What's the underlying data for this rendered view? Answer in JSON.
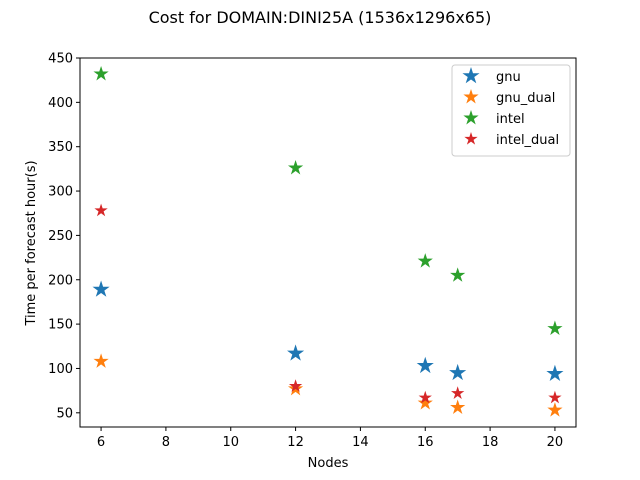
{
  "chart_data": {
    "type": "scatter",
    "title": "Cost for DOMAIN:DINI25A (1536x1296x65)",
    "xlabel": "Nodes",
    "ylabel": "Time per forecast hour(s)",
    "xlim": [
      5.35,
      20.65
    ],
    "ylim": [
      34,
      450
    ],
    "xticks": [
      6,
      8,
      10,
      12,
      14,
      16,
      18,
      20
    ],
    "yticks": [
      50,
      100,
      150,
      200,
      250,
      300,
      350,
      400,
      450
    ],
    "legend_position": "top-right",
    "grid": false,
    "series": [
      {
        "name": "gnu",
        "color": "#1f77b4",
        "marker": "large-star",
        "x": [
          6,
          12,
          16,
          17,
          20
        ],
        "y": [
          189,
          117,
          103,
          95,
          94
        ]
      },
      {
        "name": "gnu_dual",
        "color": "#ff7f0e",
        "marker": "star",
        "x": [
          6,
          12,
          16,
          17,
          20
        ],
        "y": [
          108,
          77,
          61,
          56,
          53
        ]
      },
      {
        "name": "intel",
        "color": "#2ca02c",
        "marker": "star",
        "x": [
          6,
          12,
          16,
          17,
          20
        ],
        "y": [
          432,
          326,
          221,
          205,
          145
        ]
      },
      {
        "name": "intel_dual",
        "color": "#d62728",
        "marker": "small-star",
        "x": [
          6,
          12,
          16,
          17,
          20
        ],
        "y": [
          278,
          80,
          67,
          72,
          67
        ]
      }
    ]
  }
}
